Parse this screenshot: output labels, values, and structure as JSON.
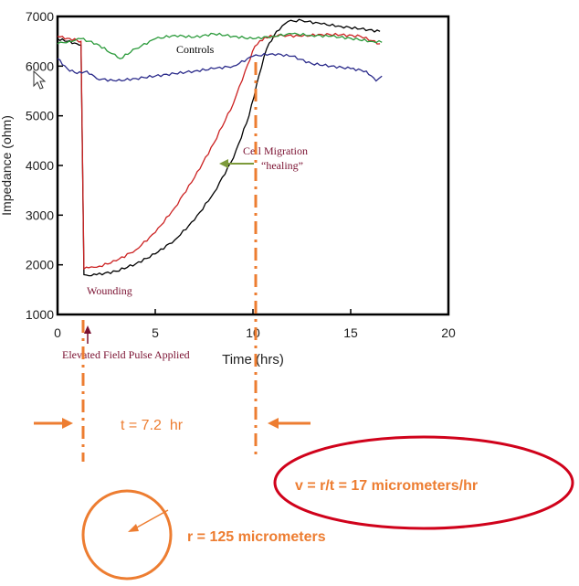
{
  "chart_data": {
    "type": "line",
    "title": "",
    "xlabel": "Time (hrs)",
    "ylabel": "Impedance (ohm)",
    "xlim": [
      0,
      20
    ],
    "ylim": [
      1000,
      7000
    ],
    "x_ticks": [
      "0",
      "5",
      "10",
      "15",
      "20"
    ],
    "y_ticks": [
      "1000",
      "2000",
      "3000",
      "4000",
      "5000",
      "6000",
      "7000"
    ],
    "grid": false,
    "series": [
      {
        "color": "#000000",
        "points": [
          [
            0,
            6550
          ],
          [
            0.5,
            6500
          ],
          [
            1.0,
            6450
          ],
          [
            1.2,
            6420
          ],
          [
            1.35,
            1800
          ],
          [
            1.6,
            1780
          ],
          [
            2.0,
            1800
          ],
          [
            3.0,
            1870
          ],
          [
            4.0,
            2020
          ],
          [
            5.0,
            2220
          ],
          [
            6.0,
            2500
          ],
          [
            7.0,
            2900
          ],
          [
            8.0,
            3450
          ],
          [
            9.0,
            4150
          ],
          [
            9.8,
            5000
          ],
          [
            10.3,
            5800
          ],
          [
            10.7,
            6350
          ],
          [
            11.2,
            6700
          ],
          [
            11.8,
            6900
          ],
          [
            12.5,
            6920
          ],
          [
            13.5,
            6850
          ],
          [
            14.5,
            6800
          ],
          [
            15.5,
            6750
          ],
          [
            16.5,
            6700
          ]
        ]
      },
      {
        "color": "#cc2222",
        "points": [
          [
            0,
            6600
          ],
          [
            0.5,
            6560
          ],
          [
            1.0,
            6520
          ],
          [
            1.2,
            6500
          ],
          [
            1.35,
            1920
          ],
          [
            1.6,
            1940
          ],
          [
            2.0,
            1950
          ],
          [
            3.0,
            2080
          ],
          [
            4.0,
            2300
          ],
          [
            5.0,
            2650
          ],
          [
            6.0,
            3150
          ],
          [
            7.0,
            3750
          ],
          [
            8.0,
            4450
          ],
          [
            9.0,
            5250
          ],
          [
            9.6,
            5900
          ],
          [
            10.1,
            6400
          ],
          [
            10.6,
            6580
          ],
          [
            11.5,
            6620
          ],
          [
            12.5,
            6600
          ],
          [
            13.5,
            6640
          ],
          [
            14.5,
            6630
          ],
          [
            15.5,
            6600
          ],
          [
            16.5,
            6450
          ]
        ]
      },
      {
        "color": "#2a9a3a",
        "points": [
          [
            0,
            6450
          ],
          [
            0.6,
            6500
          ],
          [
            1.2,
            6550
          ],
          [
            2.0,
            6450
          ],
          [
            2.8,
            6250
          ],
          [
            3.2,
            6150
          ],
          [
            4.0,
            6350
          ],
          [
            5.0,
            6550
          ],
          [
            6.0,
            6620
          ],
          [
            7.0,
            6580
          ],
          [
            8.0,
            6650
          ],
          [
            9.0,
            6600
          ],
          [
            10.0,
            6550
          ],
          [
            11.0,
            6600
          ],
          [
            12.0,
            6650
          ],
          [
            13.0,
            6620
          ],
          [
            14.0,
            6600
          ],
          [
            15.0,
            6560
          ],
          [
            16.0,
            6500
          ],
          [
            16.6,
            6480
          ]
        ]
      },
      {
        "color": "#2a2a8a",
        "points": [
          [
            0,
            6150
          ],
          [
            0.5,
            5950
          ],
          [
            1.0,
            5850
          ],
          [
            1.5,
            5900
          ],
          [
            2.0,
            5750
          ],
          [
            3.0,
            5700
          ],
          [
            4.0,
            5750
          ],
          [
            5.0,
            5800
          ],
          [
            6.0,
            5850
          ],
          [
            7.0,
            5900
          ],
          [
            8.0,
            5950
          ],
          [
            9.0,
            6000
          ],
          [
            10.0,
            6200
          ],
          [
            11.0,
            6250
          ],
          [
            12.0,
            6200
          ],
          [
            13.0,
            6050
          ],
          [
            14.0,
            6000
          ],
          [
            15.0,
            5950
          ],
          [
            15.8,
            5900
          ],
          [
            16.3,
            5700
          ],
          [
            16.6,
            5800
          ]
        ]
      }
    ],
    "annotations": {
      "controls": "Controls",
      "wounding": "Wounding",
      "cell_migration": "Cell Migration",
      "healing": "“healing”",
      "pulse": "Elevated Field Pulse Applied"
    }
  },
  "overlay": {
    "time_label": "t = 7.2  hr",
    "velocity_label": "v = r/t = 17 micrometers/hr",
    "radius_label": "r = 125 micrometers",
    "accent_color": "#ed7d31",
    "ellipse_color": "#d0021b",
    "marker_times": [
      1.35,
      10.2
    ]
  }
}
